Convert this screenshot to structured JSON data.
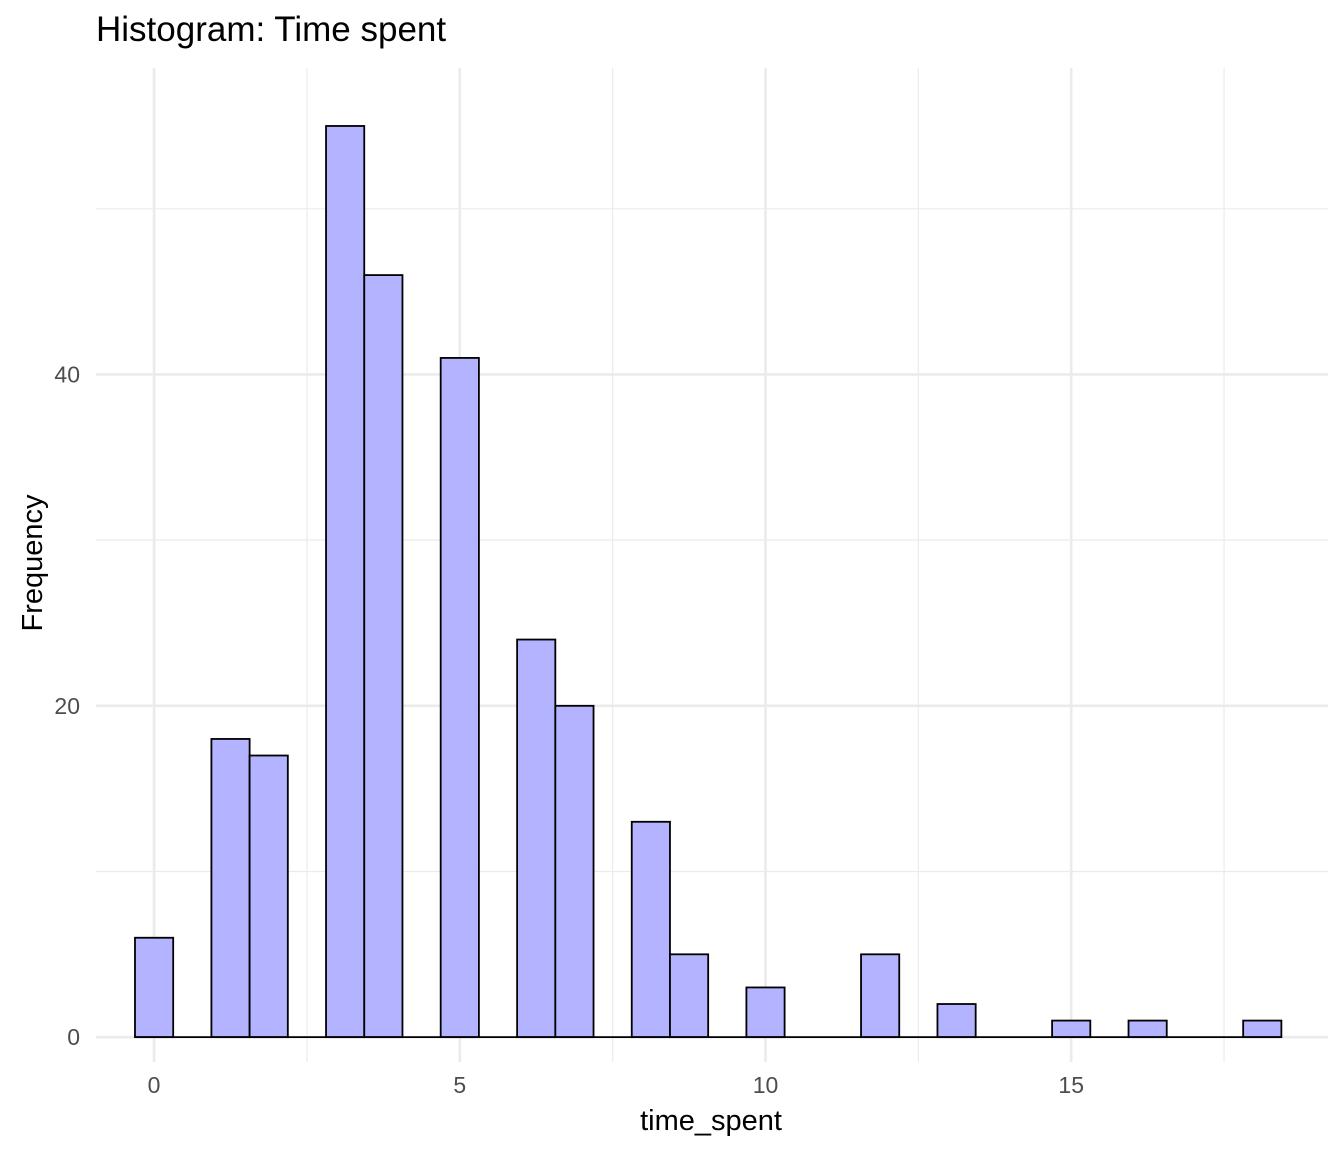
{
  "chart_data": {
    "type": "bar",
    "title": "Histogram: Time spent",
    "xlabel": "time_spent",
    "ylabel": "Frequency",
    "xlim": [
      -0.95,
      19.2
    ],
    "ylim": [
      -1.5,
      58.5
    ],
    "x_ticks": [
      0,
      5,
      10,
      15
    ],
    "y_ticks": [
      0,
      20,
      40
    ],
    "x_minor_ticks": [
      2.5,
      7.5,
      12.5,
      17.5
    ],
    "y_minor_ticks": [
      10,
      30,
      50
    ],
    "bin_width": 0.625,
    "bins": [
      {
        "x_start": -0.3125,
        "x_end": 0.3125,
        "count": 6
      },
      {
        "x_start": 0.9375,
        "x_end": 1.5625,
        "count": 18
      },
      {
        "x_start": 1.5625,
        "x_end": 2.1875,
        "count": 17
      },
      {
        "x_start": 2.8125,
        "x_end": 3.4375,
        "count": 55
      },
      {
        "x_start": 3.4375,
        "x_end": 4.0625,
        "count": 46
      },
      {
        "x_start": 4.6875,
        "x_end": 5.3125,
        "count": 41
      },
      {
        "x_start": 5.9375,
        "x_end": 6.5625,
        "count": 24
      },
      {
        "x_start": 6.5625,
        "x_end": 7.1875,
        "count": 20
      },
      {
        "x_start": 7.8125,
        "x_end": 8.4375,
        "count": 13
      },
      {
        "x_start": 8.4375,
        "x_end": 9.0625,
        "count": 5
      },
      {
        "x_start": 9.6875,
        "x_end": 10.3125,
        "count": 3
      },
      {
        "x_start": 11.5625,
        "x_end": 12.1875,
        "count": 5
      },
      {
        "x_start": 12.8125,
        "x_end": 13.4375,
        "count": 2
      },
      {
        "x_start": 14.6875,
        "x_end": 15.3125,
        "count": 1
      },
      {
        "x_start": 15.9375,
        "x_end": 16.5625,
        "count": 1
      },
      {
        "x_start": 17.8125,
        "x_end": 18.4375,
        "count": 1
      }
    ],
    "fill_color": "#b3b3ff",
    "edge_color": "#000000",
    "grid": true,
    "grid_color": "#ebebeb",
    "legend": "none"
  }
}
